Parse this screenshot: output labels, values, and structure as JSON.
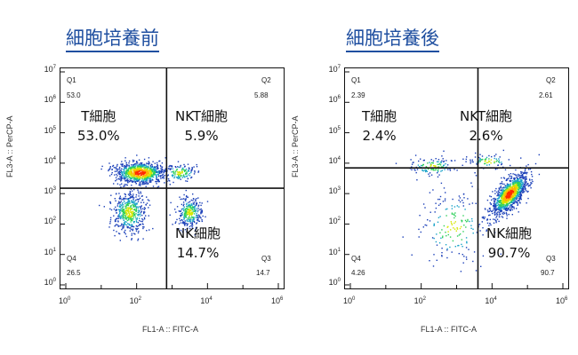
{
  "chart_data": [
    {
      "type": "scatter",
      "title": "細胞培養前",
      "xlabel": "FL1-A :: FITC-A",
      "ylabel": "FL3-A :: PerCP-A",
      "x_scale": "log",
      "y_scale": "log",
      "xlim": [
        1,
        1000000
      ],
      "ylim": [
        1,
        10000000
      ],
      "gate": {
        "x": 700,
        "y": 1500
      },
      "quadrants": [
        {
          "id": "Q1",
          "value": "53.0",
          "population": "T細胞",
          "percent": "53.0%"
        },
        {
          "id": "Q2",
          "value": "5.88",
          "population": "NKT細胞",
          "percent": "5.9%"
        },
        {
          "id": "Q3",
          "value": "14.7",
          "population": "NK細胞",
          "percent": "14.7%"
        },
        {
          "id": "Q4",
          "value": "26.5"
        }
      ],
      "clusters": [
        {
          "x": 120,
          "y": 5000,
          "spread_x": 0.35,
          "spread_y": 0.18,
          "n": 900,
          "peak": true
        },
        {
          "x": 1600,
          "y": 5000,
          "spread_x": 0.25,
          "spread_y": 0.15,
          "n": 150
        },
        {
          "x": 3000,
          "y": 250,
          "spread_x": 0.18,
          "spread_y": 0.25,
          "n": 300
        },
        {
          "x": 60,
          "y": 250,
          "spread_x": 0.25,
          "spread_y": 0.35,
          "n": 500
        }
      ]
    },
    {
      "type": "scatter",
      "title": "細胞培養後",
      "xlabel": "FL1-A :: FITC-A",
      "ylabel": "FL3-A :: PerCP-A",
      "x_scale": "log",
      "y_scale": "log",
      "xlim": [
        1,
        1000000
      ],
      "ylim": [
        1,
        10000000
      ],
      "gate": {
        "x": 4000,
        "y": 7000
      },
      "quadrants": [
        {
          "id": "Q1",
          "value": "2.39",
          "population": "T細胞",
          "percent": "2.4%"
        },
        {
          "id": "Q2",
          "value": "2.61",
          "population": "NKT細胞",
          "percent": "2.6%"
        },
        {
          "id": "Q3",
          "value": "90.7",
          "population": "NK細胞",
          "percent": "90.7%"
        },
        {
          "id": "Q4",
          "value": "4.26"
        }
      ],
      "clusters": [
        {
          "x": 30000,
          "y": 1000,
          "spread_x": 0.25,
          "spread_y": 0.25,
          "n": 1100,
          "peak": true,
          "tilt": 0.9
        },
        {
          "x": 200,
          "y": 8000,
          "spread_x": 0.35,
          "spread_y": 0.15,
          "n": 120
        },
        {
          "x": 8000,
          "y": 12000,
          "spread_x": 0.3,
          "spread_y": 0.12,
          "n": 80
        },
        {
          "x": 800,
          "y": 80,
          "spread_x": 0.5,
          "spread_y": 0.6,
          "n": 180
        }
      ]
    }
  ]
}
